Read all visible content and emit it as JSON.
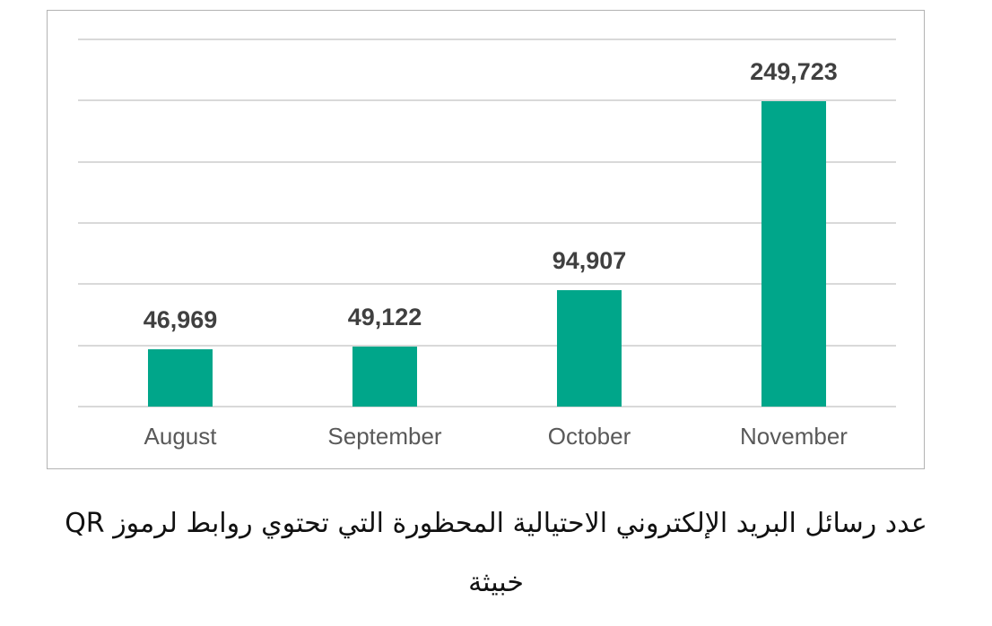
{
  "chart_data": {
    "type": "bar",
    "title": "",
    "xlabel": "",
    "ylabel": "",
    "categories": [
      "August",
      "September",
      "October",
      "November"
    ],
    "values": [
      46969,
      49122,
      94907,
      249723
    ],
    "value_labels": [
      "46,969",
      "49,122",
      "94,907",
      "249,723"
    ],
    "ylim": [
      0,
      300000
    ],
    "y_gridlines": [
      0,
      50000,
      100000,
      150000,
      200000,
      250000,
      300000
    ],
    "y_axis_labels_visible": false,
    "grid": true,
    "legend": "none",
    "bar_color": "#00a68a"
  },
  "caption": {
    "line1": "عدد رسائل البريد الإلكتروني الاحتيالية المحظورة التي تحتوي روابط لرموز QR",
    "line2": "خبيثة"
  }
}
